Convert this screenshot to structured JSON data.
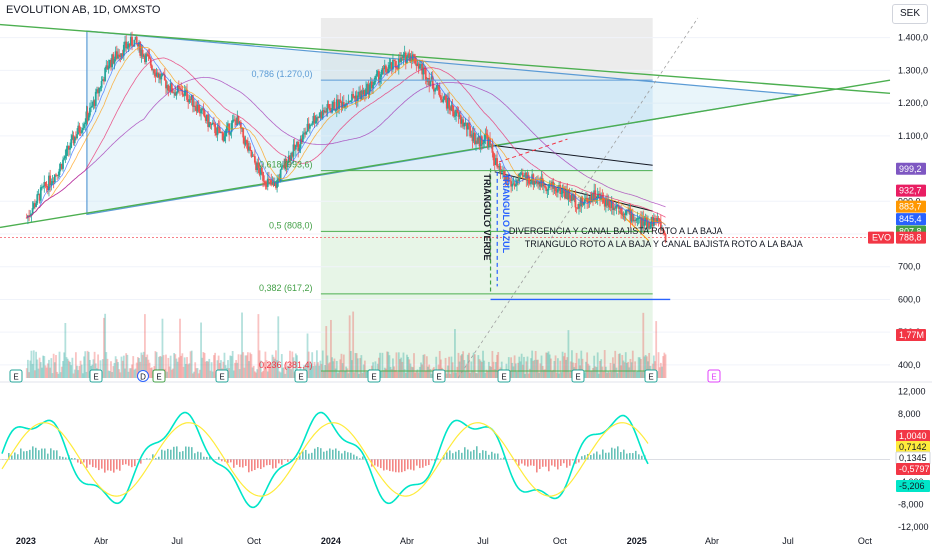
{
  "header": {
    "symbol_title": "EVOLUTION AB, 1D, OMXSTO",
    "currency": "SEK"
  },
  "colors": {
    "up": "#26a69a",
    "down": "#ef5350",
    "fib_green": "#4caf50",
    "triangle_blue": "#5b9bd5",
    "grey_zone": "#e6e6e6",
    "price_tag": "#f23645"
  },
  "chart_data": [
    {
      "type": "line",
      "name": "price",
      "title": "EVOLUTION AB, 1D, OMXSTO",
      "xlabel": "",
      "ylabel": "SEK",
      "x_ticks": [
        "2023",
        "Abr",
        "Jul",
        "Oct",
        "2024",
        "Abr",
        "Jul",
        "Oct",
        "2025",
        "Abr",
        "Jul",
        "Oct"
      ],
      "y_ticks": [
        1400,
        1300,
        1200,
        1100,
        900,
        800,
        700,
        600,
        500,
        400
      ],
      "y_tick_labels": [
        "1.400,0",
        "1.300,0",
        "1.200,0",
        "1.100,0",
        "900,0",
        "800,0",
        "700,0",
        "600,0",
        "500,0",
        "400,0"
      ],
      "ylim": [
        360,
        1460
      ],
      "series_points": [
        [
          "2023-01-02",
          850
        ],
        [
          "2023-01-20",
          930
        ],
        [
          "2023-02-10",
          1000
        ],
        [
          "2023-03-01",
          1100
        ],
        [
          "2023-03-20",
          1180
        ],
        [
          "2023-04-10",
          1320
        ],
        [
          "2023-04-25",
          1360
        ],
        [
          "2023-05-10",
          1390
        ],
        [
          "2023-05-25",
          1340
        ],
        [
          "2023-06-10",
          1280
        ],
        [
          "2023-06-25",
          1240
        ],
        [
          "2023-07-10",
          1230
        ],
        [
          "2023-07-25",
          1190
        ],
        [
          "2023-08-10",
          1130
        ],
        [
          "2023-08-25",
          1100
        ],
        [
          "2023-09-10",
          1150
        ],
        [
          "2023-09-25",
          1050
        ],
        [
          "2023-10-10",
          980
        ],
        [
          "2023-10-25",
          940
        ],
        [
          "2023-11-10",
          1030
        ],
        [
          "2023-11-25",
          1080
        ],
        [
          "2023-12-10",
          1150
        ],
        [
          "2023-12-28",
          1180
        ],
        [
          "2024-01-20",
          1210
        ],
        [
          "2024-02-10",
          1230
        ],
        [
          "2024-03-01",
          1290
        ],
        [
          "2024-03-20",
          1320
        ],
        [
          "2024-04-05",
          1350
        ],
        [
          "2024-04-20",
          1300
        ],
        [
          "2024-05-10",
          1230
        ],
        [
          "2024-05-25",
          1180
        ],
        [
          "2024-06-10",
          1130
        ],
        [
          "2024-06-25",
          1080
        ],
        [
          "2024-07-05",
          1100
        ],
        [
          "2024-07-20",
          990
        ],
        [
          "2024-08-05",
          950
        ],
        [
          "2024-08-20",
          975
        ],
        [
          "2024-09-05",
          960
        ],
        [
          "2024-09-20",
          945
        ],
        [
          "2024-10-05",
          930
        ],
        [
          "2024-10-25",
          890
        ],
        [
          "2024-11-10",
          920
        ],
        [
          "2024-11-25",
          900
        ],
        [
          "2024-12-10",
          885
        ],
        [
          "2024-12-28",
          850
        ],
        [
          "2025-01-10",
          830
        ],
        [
          "2025-01-25",
          845
        ],
        [
          "2025-02-05",
          790
        ]
      ],
      "fib_levels": [
        {
          "label": "0,786 (1.270,0)",
          "value": 1270
        },
        {
          "label": "0,618 (993,6)",
          "value": 993.6
        },
        {
          "label": "0,5 (808,0)",
          "value": 808
        },
        {
          "label": "0,382 (617,2)",
          "value": 617.2
        },
        {
          "label": "0,236 (381,4)",
          "value": 381.4
        }
      ],
      "price_tags": [
        {
          "label": "999,2",
          "color": "#7e57c2"
        },
        {
          "label": "932,7",
          "color": "#e91e63"
        },
        {
          "label": "883,7",
          "color": "#ff9800"
        },
        {
          "label": "845,4",
          "color": "#2962ff"
        },
        {
          "label": "807,8",
          "color": "#43a047"
        },
        {
          "label": "788,8",
          "color": "#f23645"
        }
      ],
      "symbol_tag": "EVO",
      "volume_tag": "1,77M",
      "annotations": [
        "TRIANGULO VERDE",
        "TRIANGULO AZUL",
        "DIVERGENCIA Y CANAL BAJISTA ROTO A LA BAJA",
        "TRIANGULO ROTO A LA BAJA Y CANAL BAJISTA ROTO A LA BAJA"
      ],
      "event_markers": [
        "E",
        "E",
        "D",
        "E",
        "E",
        "E",
        "E",
        "E",
        "E",
        "E",
        "E",
        "E",
        "E",
        "E"
      ]
    },
    {
      "type": "bar",
      "name": "oscillator",
      "y_ticks": [
        12000,
        8000,
        4000,
        0,
        -4000,
        -8000,
        -12000
      ],
      "y_tick_labels": [
        "12,000",
        "8,000",
        "4,000",
        "0,1345",
        "-4,000",
        "-8,000",
        "-12,000"
      ],
      "ylim": [
        -12500,
        13000
      ],
      "value_tags": [
        {
          "label": "1,0040",
          "color": "#f23645"
        },
        {
          "label": "0,7142",
          "color": "#ffeb3b"
        },
        {
          "label": "0,1345",
          "color": "#ffffff"
        },
        {
          "label": "-0,5797",
          "color": "#f23645"
        },
        {
          "label": "-5,206",
          "color": "#00e5c8"
        }
      ]
    }
  ]
}
